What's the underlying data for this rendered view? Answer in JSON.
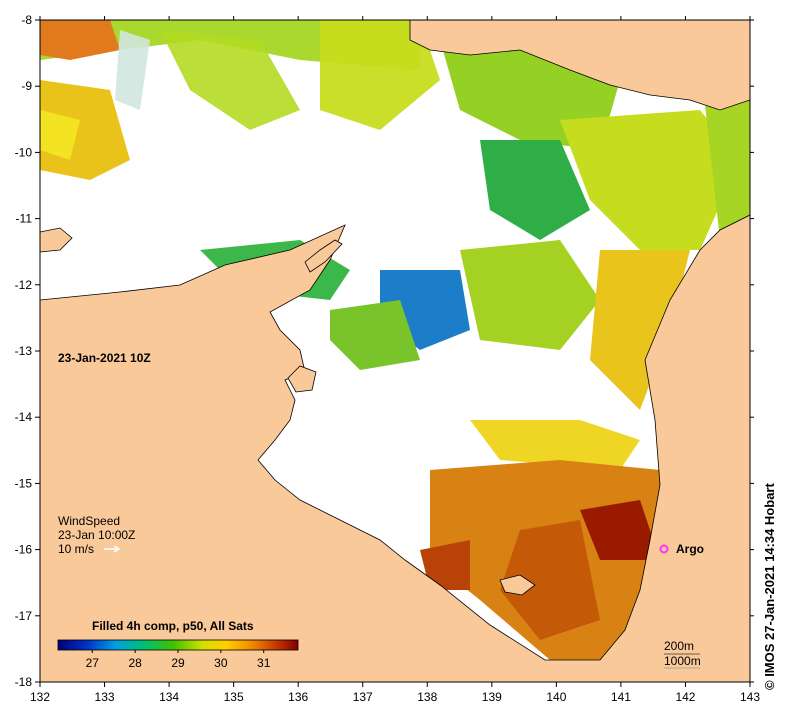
{
  "map": {
    "lon_ticks": [
      "132",
      "133",
      "134",
      "135",
      "136",
      "137",
      "138",
      "139",
      "140",
      "141",
      "142",
      "143"
    ],
    "lat_ticks": [
      "-8",
      "-9",
      "-10",
      "-11",
      "-12",
      "-13",
      "-14",
      "-15",
      "-16",
      "-17",
      "-18"
    ],
    "lon_range": [
      132,
      143
    ],
    "lat_range": [
      -18,
      -8
    ],
    "colors": {
      "land": "#f9c99a",
      "ocean_nodata": "#ffffff",
      "coast": "#000000",
      "argo": "#ff33ff"
    }
  },
  "overlay": {
    "date_label": "23-Jan-2021 10Z",
    "wind_title": "WindSpeed",
    "wind_time": "23-Jan 10:00Z",
    "wind_scale": "10 m/s",
    "argo_label": "Argo",
    "depth_200": "200m",
    "depth_1000": "1000m"
  },
  "colorbar": {
    "title": "Filled 4h comp, p50, All Sats",
    "ticks": [
      "27",
      "28",
      "29",
      "30",
      "31"
    ],
    "tick_values": [
      27,
      28,
      29,
      30,
      31
    ],
    "range": [
      26.2,
      31.8
    ]
  },
  "credit": "© IMOS 27-Jan-2021 14:34 Hobart"
}
